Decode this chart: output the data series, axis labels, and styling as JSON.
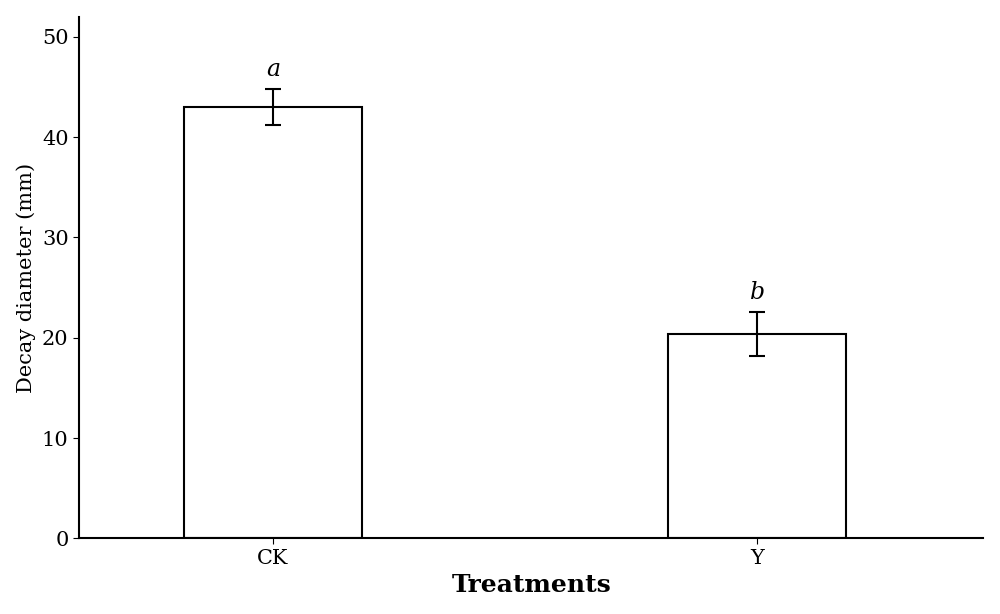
{
  "categories": [
    "CK",
    "Y"
  ],
  "values": [
    43.0,
    20.4
  ],
  "errors": [
    1.8,
    2.2
  ],
  "sig_labels": [
    "a",
    "b"
  ],
  "bar_color": "#ffffff",
  "bar_edgecolor": "#000000",
  "bar_linewidth": 1.5,
  "bar_width": 0.55,
  "bar_positions": [
    1.0,
    2.5
  ],
  "xlabel": "Treatments",
  "ylabel": "Decay diameter (mm)",
  "ylim": [
    0,
    52
  ],
  "yticks": [
    0,
    10,
    20,
    30,
    40,
    50
  ],
  "xlabel_fontsize": 18,
  "ylabel_fontsize": 15,
  "tick_fontsize": 15,
  "sig_fontsize": 17,
  "error_capsize": 6,
  "error_linewidth": 1.5,
  "background_color": "#ffffff",
  "xlim": [
    0.4,
    3.2
  ]
}
